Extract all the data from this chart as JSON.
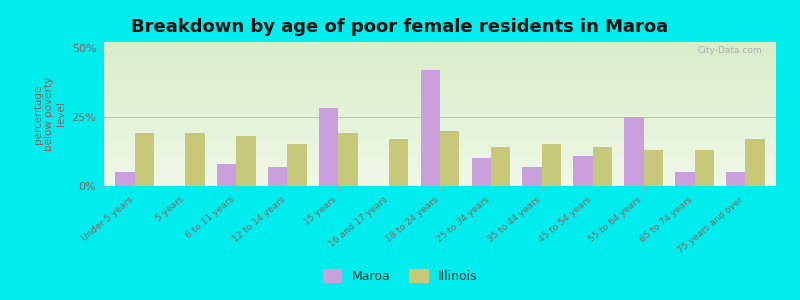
{
  "title": "Breakdown by age of poor female residents in Maroa",
  "categories": [
    "Under 5 years",
    "5 years",
    "6 to 11 years",
    "12 to 14 years",
    "15 years",
    "16 and 17 years",
    "18 to 24 years",
    "25 to 34 years",
    "35 to 44 years",
    "45 to 54 years",
    "55 to 64 years",
    "65 to 74 years",
    "75 years and over"
  ],
  "maroa_values": [
    5,
    0,
    8,
    7,
    28,
    0,
    42,
    10,
    7,
    11,
    25,
    5,
    5
  ],
  "illinois_values": [
    19,
    19,
    18,
    15,
    19,
    17,
    20,
    14,
    15,
    14,
    13,
    13,
    17
  ],
  "maroa_color": "#c9a0dc",
  "illinois_color": "#c8c87a",
  "figure_bg_color": "#00eded",
  "plot_bg_gradient_top": "#d8edc8",
  "plot_bg_gradient_bottom": "#f0f8e8",
  "ylabel": "percentage\nbelow poverty\nlevel",
  "ylabel_color": "#8B6060",
  "ytick_color": "#8B6060",
  "xtick_color": "#8B6060",
  "ylim": [
    0,
    52
  ],
  "yticks": [
    0,
    25,
    50
  ],
  "ytick_labels": [
    "0%",
    "25%",
    "50%"
  ],
  "watermark": "City-Data.com",
  "watermark_color": "#a0a0a0",
  "legend_maroa": "Maroa",
  "legend_illinois": "Illinois",
  "title_fontsize": 13,
  "bar_width": 0.38
}
